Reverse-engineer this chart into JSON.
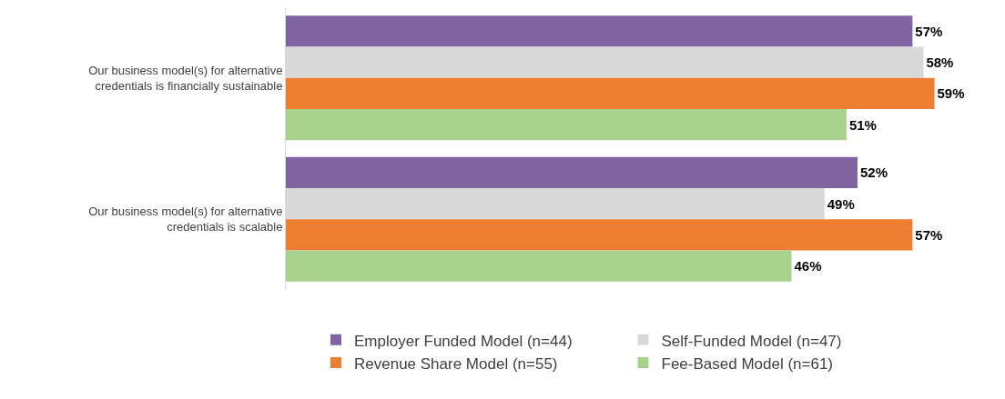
{
  "chart_data": {
    "type": "bar",
    "orientation": "horizontal",
    "categories": [
      "Our business model(s) for alternative credentials is financially sustainable",
      "Our business model(s) for alternative credentials is scalable"
    ],
    "series": [
      {
        "name": "Employer Funded Model (n=44)",
        "color": "#8064a2",
        "values": [
          57,
          52
        ],
        "value_labels": [
          "57%",
          "52%"
        ]
      },
      {
        "name": "Self-Funded Model (n=47)",
        "color": "#d9d9d9",
        "values": [
          58,
          49
        ],
        "value_labels": [
          "58%",
          "49%"
        ]
      },
      {
        "name": "Revenue Share Model (n=55)",
        "color": "#ed7d31",
        "values": [
          59,
          57
        ],
        "value_labels": [
          "59%",
          "57%"
        ]
      },
      {
        "name": "Fee-Based Model (n=61)",
        "color": "#a9d18e",
        "values": [
          51,
          46
        ],
        "value_labels": [
          "51%",
          "46%"
        ]
      }
    ],
    "tick_labels": "y",
    "legend": "bottom"
  }
}
